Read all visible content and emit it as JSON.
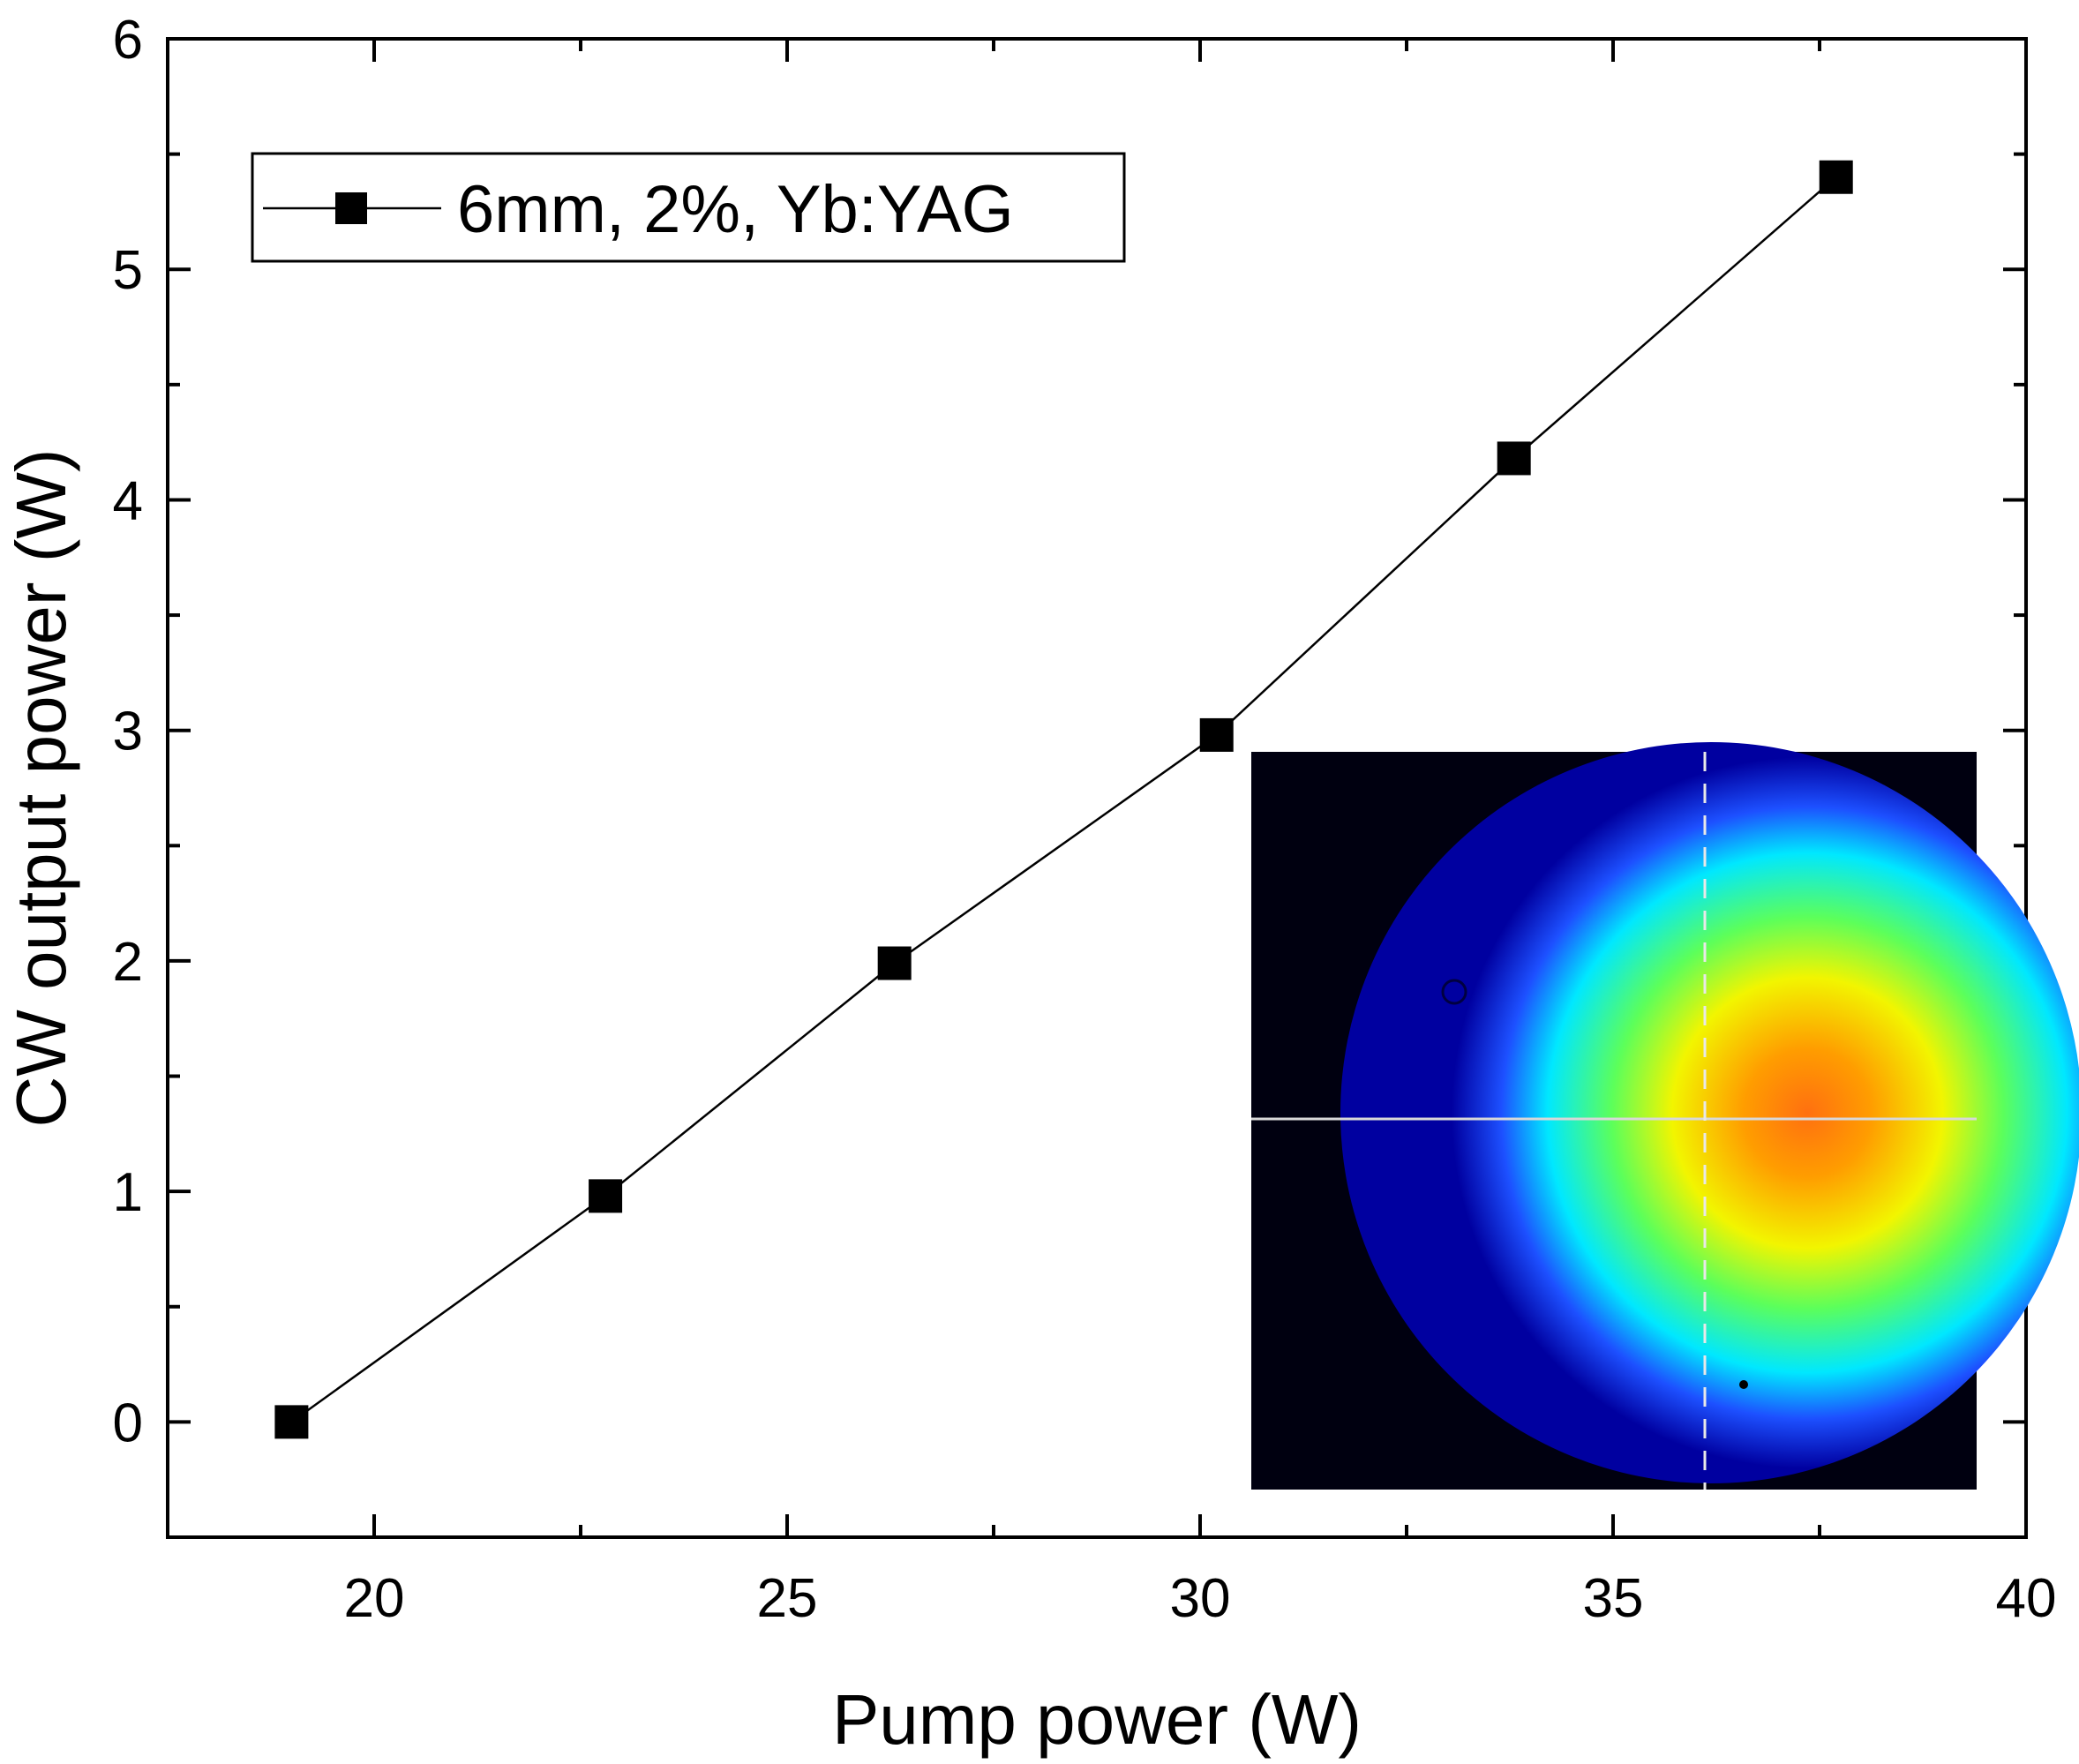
{
  "chart_data": {
    "type": "line",
    "title": "",
    "xlabel": "Pump power (W)",
    "ylabel": "CW output power (W)",
    "xlim": [
      17.5,
      40
    ],
    "ylim": [
      -0.5,
      6
    ],
    "x_ticks": [
      "20",
      "25",
      "30",
      "35",
      "40"
    ],
    "y_ticks": [
      "0",
      "1",
      "2",
      "3",
      "4",
      "5",
      "6"
    ],
    "x_tick_values": [
      20,
      25,
      30,
      35,
      40
    ],
    "y_tick_values": [
      0,
      1,
      2,
      3,
      4,
      5,
      6
    ],
    "x_minor_step": 2.5,
    "y_minor_step": 0.5,
    "grid": false,
    "legend_position": "top-left",
    "series": [
      {
        "name": "6mm, 2%, Yb:YAG",
        "marker": "square",
        "color": "#000000",
        "x": [
          19.0,
          22.8,
          26.3,
          30.2,
          33.8,
          37.7
        ],
        "y": [
          0.0,
          0.98,
          1.99,
          2.98,
          4.18,
          5.4
        ]
      }
    ],
    "inset": {
      "description_icon": "beam-profile-image",
      "colors": [
        "#000010",
        "#0000a0",
        "#1d50ff",
        "#00e8ff",
        "#5cff5a",
        "#f2f500",
        "#ff9d00",
        "#ff7010"
      ]
    }
  }
}
